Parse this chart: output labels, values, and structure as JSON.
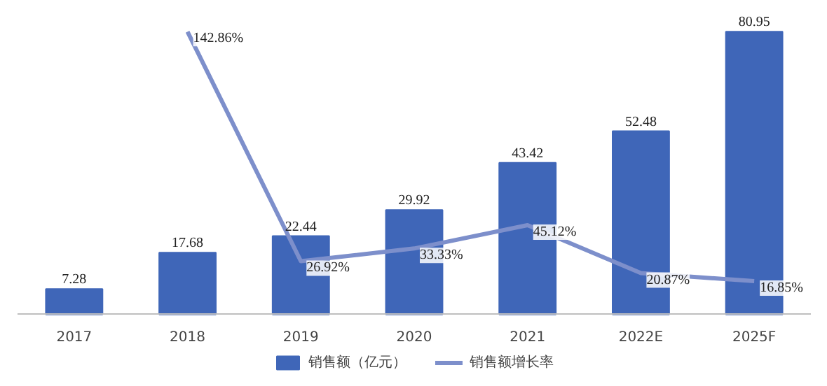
{
  "chart_data": {
    "type": "bar",
    "categories": [
      "2017",
      "2018",
      "2019",
      "2020",
      "2021",
      "2022E",
      "2025F"
    ],
    "series": [
      {
        "name": "销售额（亿元）",
        "color": "#3f66b8",
        "values": [
          7.28,
          17.68,
          22.44,
          29.92,
          43.42,
          52.48,
          80.95
        ]
      },
      {
        "name": "销售额增长率",
        "type": "line",
        "axis": "y2",
        "color": "#7d8fcb",
        "values": [
          null,
          142.86,
          26.92,
          33.33,
          45.12,
          20.87,
          16.85
        ],
        "value_labels": [
          null,
          "142.86%",
          "26.92%",
          "33.33%",
          "45.12%",
          "20.87%",
          "16.85%"
        ]
      }
    ],
    "data_labels": true,
    "legend": "bottom"
  }
}
